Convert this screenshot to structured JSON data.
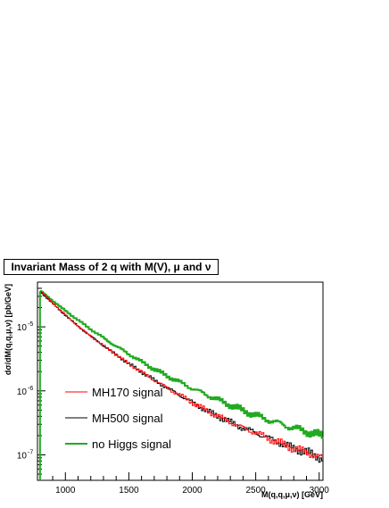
{
  "chart_data": {
    "type": "line",
    "title": "Invariant Mass of 2 q with M(V), μ and ν",
    "xlabel": "M(q,q,μ,ν) [GeV]",
    "ylabel": "dσ/dM(q,q,μ,ν) [pb/GeV]",
    "x_scale": "linear",
    "y_scale": "log",
    "xlim": [
      780,
      3030
    ],
    "ylim": [
      4e-08,
      5e-05
    ],
    "x_ticks": [
      1000,
      1500,
      2000,
      2500,
      3000
    ],
    "x_tick_labels": [
      "1000",
      "1500",
      "2000",
      "2500",
      "3000"
    ],
    "y_ticks": [
      1e-07,
      1e-06,
      1e-05
    ],
    "y_tick_labels": [
      "10",
      "10",
      "10"
    ],
    "y_tick_exponents": [
      "-7",
      "-6",
      "-5"
    ],
    "legend_position": "bottom-left",
    "grid": false,
    "series": [
      {
        "name": "MH170 signal",
        "color": "#ff0000",
        "x": [
          800,
          900,
          1000,
          1100,
          1200,
          1300,
          1400,
          1500,
          1600,
          1700,
          1800,
          1900,
          2000,
          2100,
          2200,
          2300,
          2400,
          2500,
          2600,
          2700,
          2800,
          2900,
          3000
        ],
        "y": [
          3.6e-05,
          2.3e-05,
          1.5e-05,
          1e-05,
          7e-06,
          5e-06,
          3.6e-06,
          2.6e-06,
          1.95e-06,
          1.45e-06,
          1.1e-06,
          8.5e-07,
          6.5e-07,
          5e-07,
          4e-07,
          3.2e-07,
          2.6e-07,
          2.2e-07,
          1.8e-07,
          1.5e-07,
          1.25e-07,
          1.1e-07,
          9e-08
        ]
      },
      {
        "name": "MH500 signal",
        "color": "#000000",
        "x": [
          800,
          900,
          1000,
          1100,
          1200,
          1300,
          1400,
          1500,
          1600,
          1700,
          1800,
          1900,
          2000,
          2100,
          2200,
          2300,
          2400,
          2500,
          2600,
          2700,
          2800,
          2900,
          3000
        ],
        "y": [
          3.5e-05,
          2.25e-05,
          1.48e-05,
          1e-05,
          7e-06,
          5e-06,
          3.6e-06,
          2.6e-06,
          1.95e-06,
          1.45e-06,
          1.1e-06,
          8.5e-07,
          6.5e-07,
          5e-07,
          4e-07,
          3.2e-07,
          2.6e-07,
          2.2e-07,
          1.8e-07,
          1.5e-07,
          1.25e-07,
          1.1e-07,
          9e-08
        ]
      },
      {
        "name": "no Higgs signal",
        "color": "#22aa22",
        "x": [
          800,
          900,
          1000,
          1100,
          1200,
          1300,
          1400,
          1500,
          1600,
          1700,
          1800,
          1900,
          2000,
          2100,
          2200,
          2300,
          2400,
          2500,
          2600,
          2700,
          2800,
          2900,
          3000
        ],
        "y": [
          3.6e-05,
          2.5e-05,
          1.75e-05,
          1.25e-05,
          9e-06,
          6.6e-06,
          4.9e-06,
          3.7e-06,
          2.8e-06,
          2.15e-06,
          1.7e-06,
          1.35e-06,
          1.08e-06,
          8.8e-07,
          7.2e-07,
          5.9e-07,
          4.9e-07,
          4.1e-07,
          3.5e-07,
          3e-07,
          2.6e-07,
          2.3e-07,
          2e-07
        ]
      }
    ]
  }
}
